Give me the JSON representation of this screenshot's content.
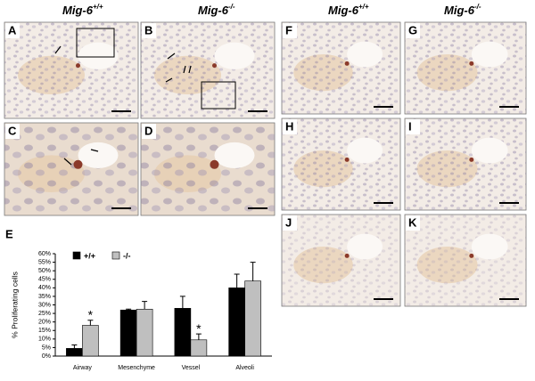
{
  "headers": [
    {
      "text": "Mig-6",
      "sup": "+/+"
    },
    {
      "text": "Mig-6",
      "sup": "-/-"
    },
    {
      "text": "Mig-6",
      "sup": "+/+"
    },
    {
      "text": "Mig-6",
      "sup": "-/-"
    }
  ],
  "panels": [
    "A",
    "B",
    "C",
    "D",
    "F",
    "G",
    "H",
    "I",
    "J",
    "K"
  ],
  "chart_data": {
    "type": "bar",
    "panel_label": "E",
    "ylabel": "% Proliferating cells",
    "categories": [
      "Airway",
      "Mesenchyme",
      "Vessel",
      "Alveoli"
    ],
    "series": [
      {
        "name": "+/+",
        "color": "#000000",
        "values": [
          4.5,
          27,
          28,
          40
        ],
        "errors": [
          2,
          0.5,
          7,
          8
        ]
      },
      {
        "name": "-/-",
        "color": "#bfbfbf",
        "values": [
          18,
          27.5,
          9.5,
          44
        ],
        "errors": [
          3,
          4.5,
          3.5,
          11
        ]
      }
    ],
    "annotations": [
      "*",
      "*"
    ],
    "ylim": [
      0,
      60
    ],
    "yticks": [
      {
        "value": 0,
        "label": "0%"
      },
      {
        "value": 5,
        "label": "5%"
      },
      {
        "value": 10,
        "label": "10%"
      },
      {
        "value": 15,
        "label": "15%"
      },
      {
        "value": 20,
        "label": "20%"
      },
      {
        "value": 25,
        "label": "25%"
      },
      {
        "value": 30,
        "label": "30%"
      },
      {
        "value": 35,
        "label": "35%"
      },
      {
        "value": 40,
        "label": "40%"
      },
      {
        "value": 45,
        "label": "45%"
      },
      {
        "value": 50,
        "label": "50%"
      },
      {
        "value": 55,
        "label": "55%"
      },
      {
        "value": 60,
        "label": "60%"
      }
    ]
  }
}
